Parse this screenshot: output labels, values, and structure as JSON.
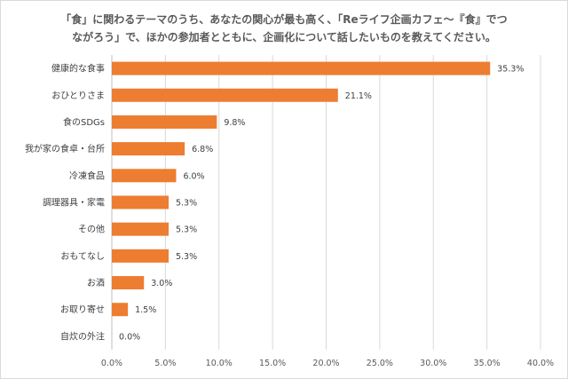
{
  "chart_data": {
    "type": "bar",
    "orientation": "horizontal",
    "title_lines": [
      "「食」に関わるテーマのうち、あなたの関心が最も高く、「Reライフ企画カフェ～『食』でつ",
      "ながろう」で、ほかの参加者とともに、企画化について話したいものを教えてください。"
    ],
    "categories": [
      "健康的な食事",
      "おひとりさま",
      "食のSDGs",
      "我が家の食卓・台所",
      "冷凍食品",
      "調理器具・家電",
      "その他",
      "おもてなし",
      "お酒",
      "お取り寄せ",
      "自炊の外注"
    ],
    "values": [
      35.3,
      21.1,
      9.8,
      6.8,
      6.0,
      5.3,
      5.3,
      5.3,
      3.0,
      1.5,
      0.0
    ],
    "value_labels": [
      "35.3%",
      "21.1%",
      "9.8%",
      "6.8%",
      "6.0%",
      "5.3%",
      "5.3%",
      "5.3%",
      "3.0%",
      "1.5%",
      "0.0%"
    ],
    "xlim": [
      0,
      40
    ],
    "x_ticks": [
      "0.0%",
      "5.0%",
      "10.0%",
      "15.0%",
      "20.0%",
      "25.0%",
      "30.0%",
      "35.0%",
      "40.0%"
    ],
    "grid": true,
    "bar_color": "#ed7d31"
  }
}
